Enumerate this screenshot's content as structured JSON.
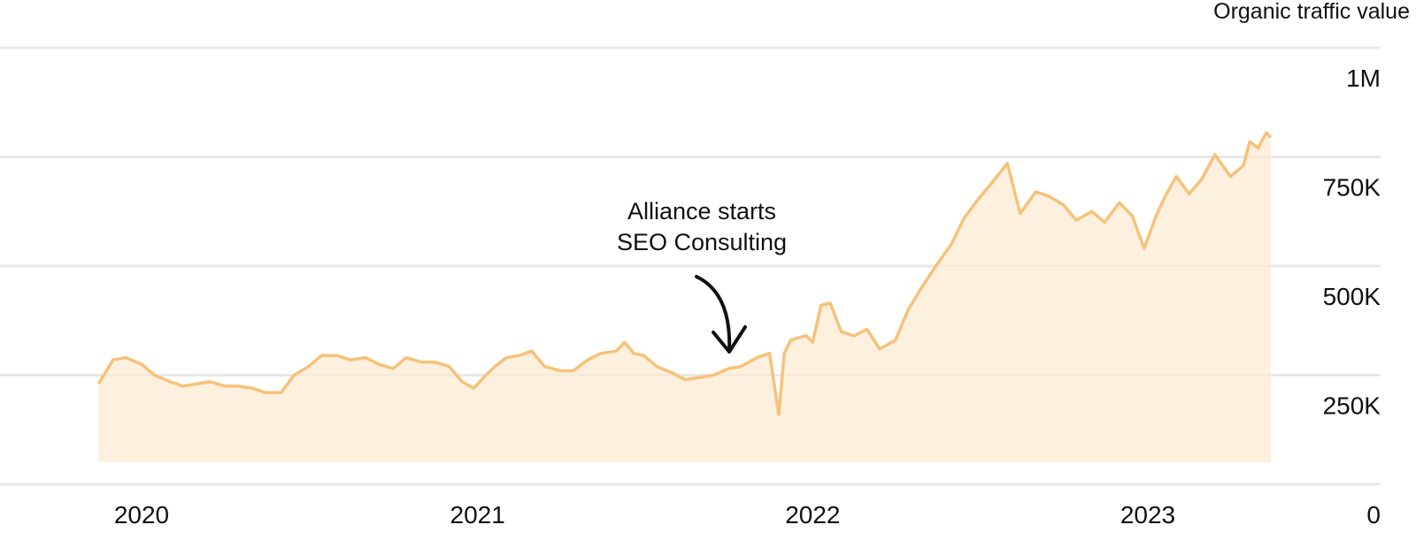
{
  "chart_data": {
    "type": "area",
    "ylabel": "Organic traffic value",
    "ylim": [
      0,
      1000000
    ],
    "y_ticks": [
      {
        "value": 1000000,
        "label": "1M"
      },
      {
        "value": 750000,
        "label": "750K"
      },
      {
        "value": 500000,
        "label": "500K"
      },
      {
        "value": 250000,
        "label": "250K"
      },
      {
        "value": 0,
        "label": "0"
      }
    ],
    "x_ticks": [
      {
        "value": "2020-01",
        "label": "2020"
      },
      {
        "value": "2021-01",
        "label": "2021"
      },
      {
        "value": "2022-01",
        "label": "2022"
      },
      {
        "value": "2023-01",
        "label": "2023"
      }
    ],
    "grid": true,
    "series": [
      {
        "color": "#f6c27a",
        "fill": "#fdebd3",
        "x": [
          "2019-11-15",
          "2019-12-01",
          "2019-12-15",
          "2020-01-01",
          "2020-01-15",
          "2020-02-01",
          "2020-02-15",
          "2020-03-01",
          "2020-03-15",
          "2020-04-01",
          "2020-04-15",
          "2020-05-01",
          "2020-05-15",
          "2020-06-01",
          "2020-06-15",
          "2020-07-01",
          "2020-07-15",
          "2020-08-01",
          "2020-08-15",
          "2020-09-01",
          "2020-09-15",
          "2020-10-01",
          "2020-10-15",
          "2020-11-01",
          "2020-11-15",
          "2020-12-01",
          "2020-12-15",
          "2020-12-28",
          "2021-01-10",
          "2021-01-20",
          "2021-02-01",
          "2021-02-15",
          "2021-03-01",
          "2021-03-15",
          "2021-04-01",
          "2021-04-15",
          "2021-05-01",
          "2021-05-15",
          "2021-06-01",
          "2021-06-10",
          "2021-06-20",
          "2021-07-01",
          "2021-07-15",
          "2021-08-01",
          "2021-08-15",
          "2021-09-01",
          "2021-09-15",
          "2021-10-01",
          "2021-10-15",
          "2021-11-01",
          "2021-11-15",
          "2021-11-25",
          "2021-12-01",
          "2021-12-08",
          "2021-12-15",
          "2021-12-25",
          "2022-01-01",
          "2022-01-10",
          "2022-01-20",
          "2022-02-01",
          "2022-02-15",
          "2022-03-01",
          "2022-03-15",
          "2022-04-01",
          "2022-04-15",
          "2022-05-01",
          "2022-05-15",
          "2022-06-01",
          "2022-06-15",
          "2022-07-01",
          "2022-07-15",
          "2022-08-01",
          "2022-08-15",
          "2022-09-01",
          "2022-09-15",
          "2022-10-01",
          "2022-10-15",
          "2022-11-01",
          "2022-11-15",
          "2022-12-01",
          "2022-12-15",
          "2022-12-28",
          "2023-01-10",
          "2023-01-20",
          "2023-02-01",
          "2023-02-15",
          "2023-03-01",
          "2023-03-15",
          "2023-04-01",
          "2023-04-15",
          "2023-04-22",
          "2023-05-01",
          "2023-05-10",
          "2023-05-15"
        ],
        "values": [
          230000,
          285000,
          290000,
          275000,
          250000,
          235000,
          225000,
          230000,
          235000,
          225000,
          225000,
          220000,
          210000,
          210000,
          250000,
          270000,
          295000,
          295000,
          285000,
          290000,
          275000,
          265000,
          290000,
          280000,
          280000,
          270000,
          235000,
          220000,
          250000,
          270000,
          290000,
          295000,
          305000,
          270000,
          260000,
          260000,
          285000,
          300000,
          305000,
          325000,
          300000,
          295000,
          270000,
          255000,
          240000,
          245000,
          250000,
          265000,
          270000,
          290000,
          300000,
          160000,
          300000,
          330000,
          335000,
          340000,
          325000,
          410000,
          415000,
          350000,
          340000,
          355000,
          310000,
          330000,
          400000,
          455000,
          500000,
          550000,
          610000,
          655000,
          690000,
          735000,
          620000,
          670000,
          660000,
          640000,
          605000,
          625000,
          600000,
          645000,
          615000,
          540000,
          615000,
          660000,
          705000,
          665000,
          700000,
          755000,
          705000,
          730000,
          785000,
          770000,
          805000,
          795000
        ]
      }
    ],
    "annotations": [
      {
        "text_lines": [
          "Alliance starts",
          "SEO Consulting"
        ],
        "points_to": "2021-11-25"
      }
    ]
  }
}
